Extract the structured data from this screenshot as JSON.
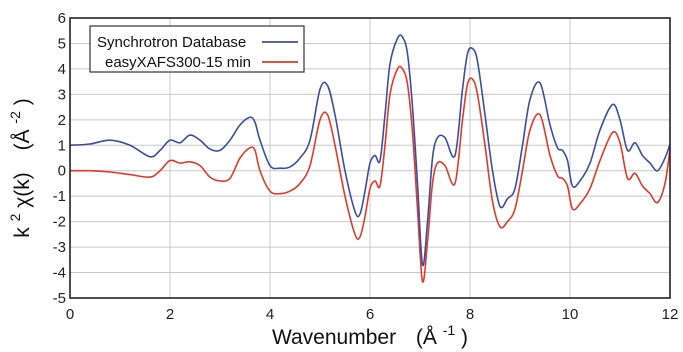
{
  "chart_data": {
    "type": "line",
    "xlabel": "Wavenumber",
    "xlabel_unit": "(Å",
    "xlabel_unit_sup": "-1",
    "xlabel_unit_close": ")",
    "ylabel_main": "k",
    "ylabel_main_sup": "2",
    "ylabel_func": " χ(k)",
    "ylabel_unit": "(Å",
    "ylabel_unit_sup": "-2",
    "ylabel_unit_close": ")",
    "xlim": [
      0,
      12
    ],
    "ylim": [
      -5,
      6
    ],
    "xticks": [
      0,
      2,
      4,
      6,
      8,
      10,
      12
    ],
    "xtick_labels": [
      "0",
      "2",
      "4",
      "6",
      "8",
      "10",
      "12"
    ],
    "yticks": [
      -5,
      -4,
      -3,
      -2,
      -1,
      0,
      1,
      2,
      3,
      4,
      5,
      6
    ],
    "ytick_labels": [
      "-5",
      "-4",
      "-3",
      "-2",
      "-1",
      "0",
      "1",
      "2",
      "3",
      "4",
      "5",
      "6"
    ],
    "grid": true,
    "legend_position": "top-left",
    "series": [
      {
        "name": "Synchrotron Database",
        "color": "#3b4ea3",
        "x": [
          0,
          0.4,
          0.8,
          1.2,
          1.6,
          1.8,
          2.0,
          2.2,
          2.4,
          2.6,
          2.8,
          3.0,
          3.2,
          3.4,
          3.6,
          3.7,
          3.8,
          4.0,
          4.2,
          4.4,
          4.6,
          4.8,
          5.0,
          5.15,
          5.3,
          5.5,
          5.7,
          5.8,
          5.9,
          6.0,
          6.1,
          6.2,
          6.3,
          6.4,
          6.55,
          6.65,
          6.75,
          6.85,
          6.95,
          7.05,
          7.15,
          7.25,
          7.35,
          7.5,
          7.7,
          7.85,
          7.95,
          8.05,
          8.15,
          8.3,
          8.45,
          8.6,
          8.75,
          8.9,
          9.05,
          9.2,
          9.4,
          9.6,
          9.75,
          9.85,
          9.95,
          10.05,
          10.2,
          10.4,
          10.6,
          10.85,
          11.0,
          11.15,
          11.3,
          11.45,
          11.6,
          11.75,
          11.9,
          12.0
        ],
        "y": [
          1.0,
          1.05,
          1.2,
          1.0,
          0.55,
          0.8,
          1.2,
          1.1,
          1.4,
          1.2,
          0.85,
          0.8,
          1.2,
          1.8,
          2.1,
          1.9,
          1.2,
          0.2,
          0.1,
          0.15,
          0.5,
          1.2,
          3.2,
          3.35,
          2.2,
          0.0,
          -1.6,
          -1.7,
          -0.8,
          0.3,
          0.6,
          0.4,
          2.2,
          4.2,
          5.2,
          5.25,
          4.6,
          2.5,
          -0.5,
          -3.7,
          -2.0,
          0.5,
          1.3,
          1.3,
          0.6,
          3.2,
          4.6,
          4.8,
          4.3,
          2.2,
          0.0,
          -1.4,
          -1.1,
          -0.7,
          1.0,
          2.8,
          3.45,
          1.8,
          0.9,
          0.8,
          0.4,
          -0.6,
          -0.4,
          0.3,
          1.6,
          2.6,
          2.0,
          0.8,
          1.1,
          0.6,
          0.3,
          0.0,
          0.5,
          1.05
        ]
      },
      {
        "name": "easyXAFS300-15 min",
        "color": "#e03a2a",
        "x": [
          0,
          0.4,
          0.8,
          1.2,
          1.6,
          1.8,
          2.0,
          2.2,
          2.4,
          2.6,
          2.8,
          3.0,
          3.2,
          3.4,
          3.6,
          3.7,
          3.8,
          4.0,
          4.2,
          4.4,
          4.6,
          4.8,
          5.0,
          5.15,
          5.3,
          5.5,
          5.7,
          5.8,
          5.9,
          6.0,
          6.1,
          6.2,
          6.3,
          6.4,
          6.55,
          6.65,
          6.75,
          6.85,
          6.95,
          7.05,
          7.15,
          7.25,
          7.35,
          7.5,
          7.7,
          7.85,
          7.95,
          8.05,
          8.15,
          8.3,
          8.45,
          8.6,
          8.75,
          8.9,
          9.05,
          9.2,
          9.4,
          9.6,
          9.75,
          9.85,
          9.95,
          10.05,
          10.2,
          10.4,
          10.6,
          10.85,
          11.0,
          11.15,
          11.3,
          11.45,
          11.6,
          11.75,
          11.9,
          12.0
        ],
        "y": [
          0.0,
          0.0,
          -0.05,
          -0.15,
          -0.25,
          0.0,
          0.4,
          0.3,
          0.35,
          0.2,
          -0.25,
          -0.4,
          -0.3,
          0.5,
          0.9,
          0.8,
          0.0,
          -0.8,
          -0.9,
          -0.8,
          -0.5,
          0.2,
          2.0,
          2.2,
          1.0,
          -1.0,
          -2.5,
          -2.6,
          -1.8,
          -0.7,
          -0.4,
          -0.6,
          1.0,
          3.0,
          4.0,
          4.0,
          3.4,
          1.5,
          -1.5,
          -4.35,
          -2.8,
          -0.5,
          0.3,
          0.2,
          -0.5,
          2.0,
          3.4,
          3.6,
          3.0,
          1.0,
          -1.2,
          -2.2,
          -2.0,
          -1.5,
          0.0,
          1.6,
          2.2,
          0.6,
          -0.2,
          -0.3,
          -0.6,
          -1.5,
          -1.3,
          -0.7,
          0.4,
          1.5,
          1.1,
          -0.3,
          -0.1,
          -0.6,
          -0.9,
          -1.25,
          -0.5,
          0.85
        ]
      }
    ]
  }
}
